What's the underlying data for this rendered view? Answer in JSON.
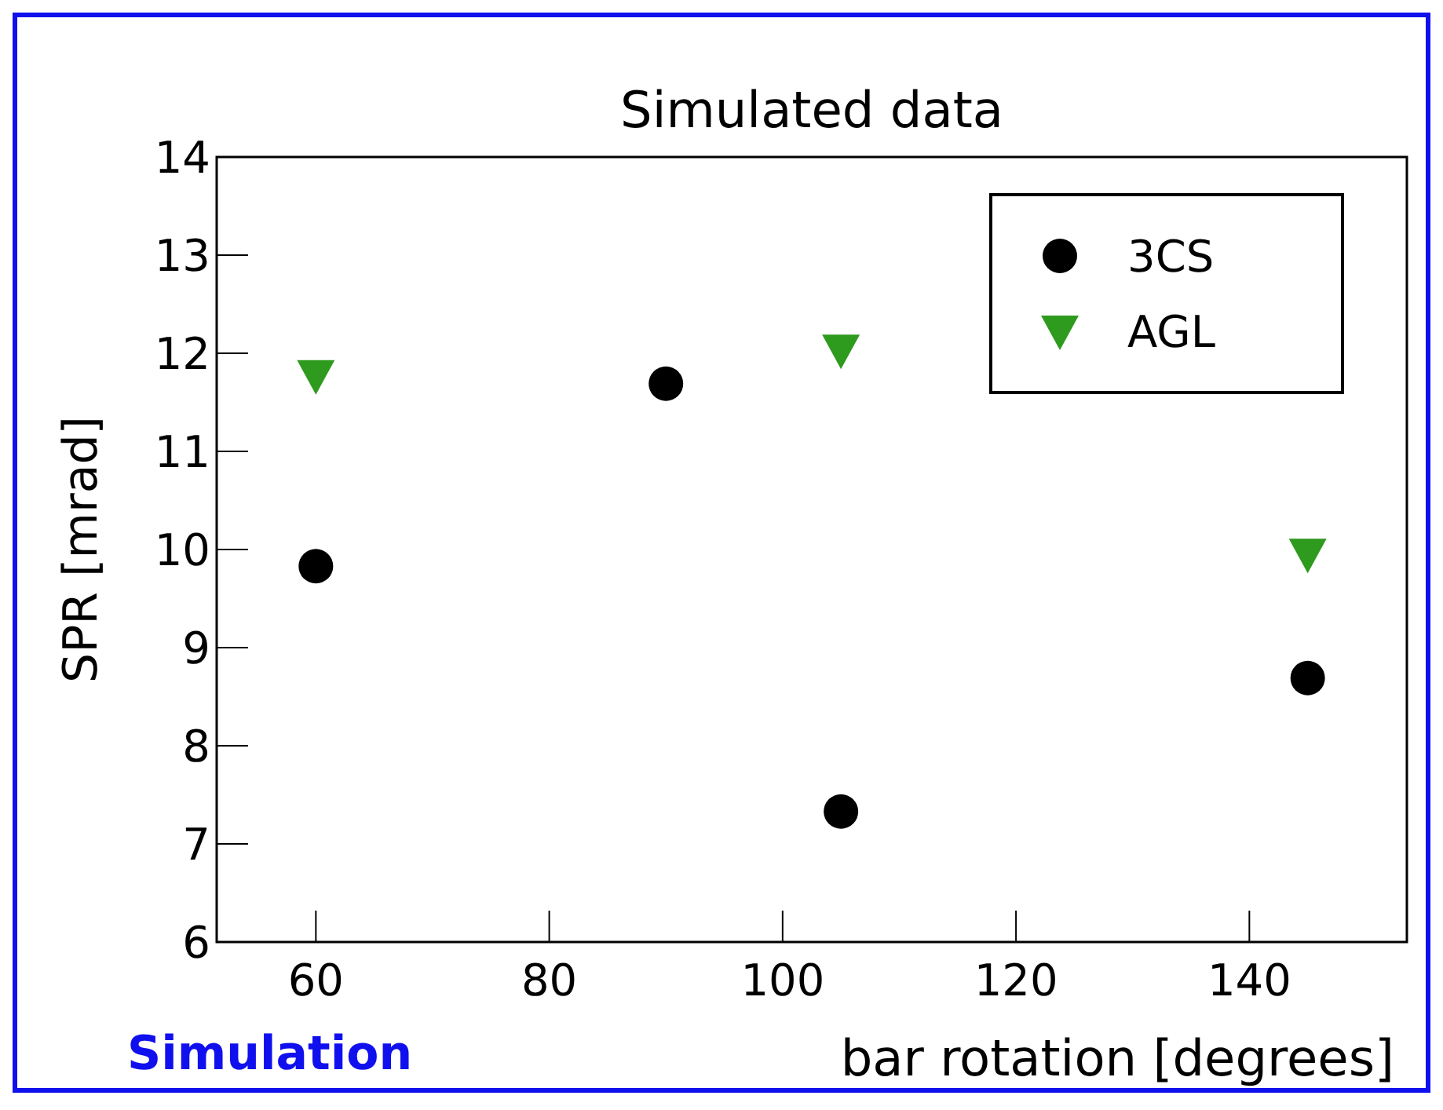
{
  "chart_data": {
    "type": "scatter",
    "title": "Simulated data",
    "xlabel": "bar rotation [degrees]",
    "ylabel": "SPR [mrad]",
    "annotations": [
      "Simulation"
    ],
    "series": [
      {
        "name": "3CS",
        "color": "#000000",
        "marker": "circle",
        "x": [
          60,
          90,
          105,
          145
        ],
        "values": [
          9.83,
          11.69,
          7.33,
          8.69
        ]
      },
      {
        "name": "AGL",
        "color": "#2e9a1e",
        "marker": "triangle",
        "x": [
          60,
          105,
          145
        ],
        "values": [
          11.77,
          12.03,
          9.95
        ]
      }
    ],
    "xlim": [
      51.5,
      153.5
    ],
    "xticks": [
      60,
      80,
      100,
      120,
      140
    ],
    "ylim": [
      6,
      14
    ],
    "yticks": [
      6,
      7,
      8,
      9,
      10,
      11,
      12,
      13,
      14
    ],
    "grid": false,
    "legend": "top right"
  }
}
